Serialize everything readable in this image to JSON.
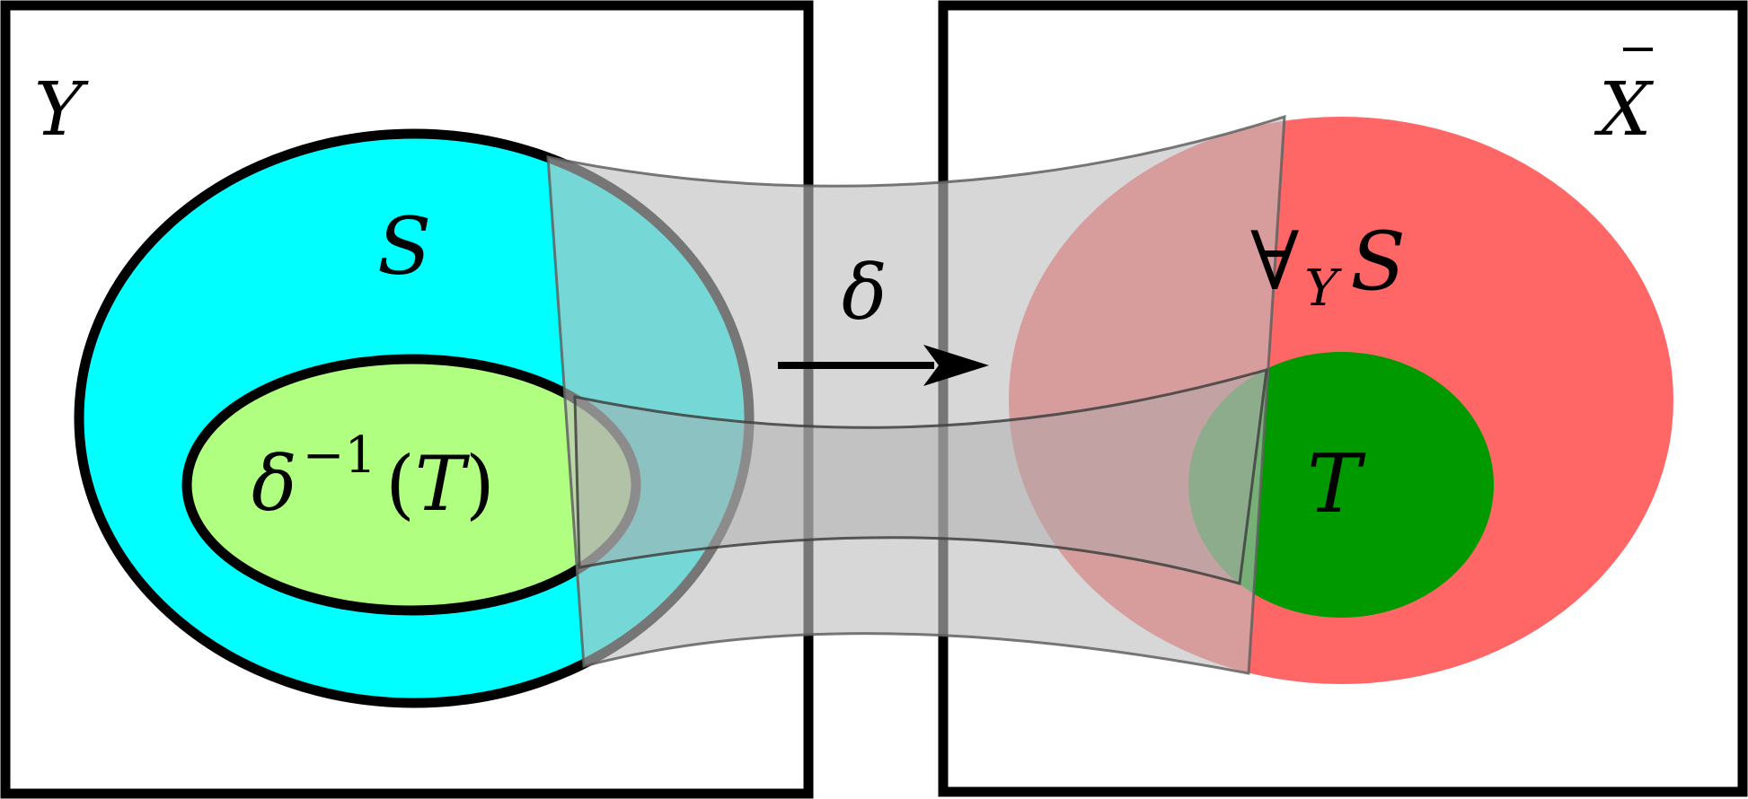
{
  "left_box": {
    "label": "Y"
  },
  "right_box": {
    "label": "X",
    "label_overline": true
  },
  "set_S": {
    "label": "S",
    "color": "#00ffff"
  },
  "set_preimage": {
    "delta": "δ",
    "superscript": "−1",
    "arg_open": "(",
    "arg": "T",
    "arg_close": ")",
    "color": "#b0ff80"
  },
  "map": {
    "label": "δ",
    "icon": "arrow-right-icon"
  },
  "set_forall": {
    "quantifier": "∀",
    "subscript": "Y",
    "label": "S",
    "color": "#ff6666"
  },
  "set_T": {
    "label": "T",
    "color": "#009900"
  },
  "band_color": "#bfbfbf"
}
